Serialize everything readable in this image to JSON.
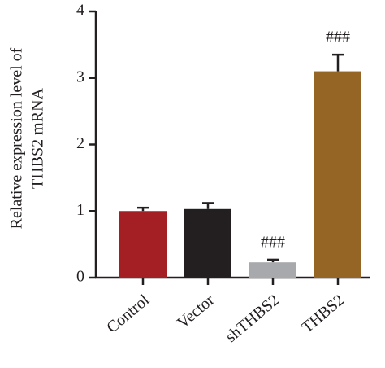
{
  "chart_data": {
    "type": "bar",
    "y_label": [
      "Relative expression level of",
      "THBS2 mRNA"
    ],
    "categories": [
      "Control",
      "Vector",
      "shTHBS2",
      "THBS2"
    ],
    "values": [
      1.0,
      1.03,
      0.23,
      3.1
    ],
    "errors": [
      0.05,
      0.09,
      0.04,
      0.25
    ],
    "colors": [
      "#a31f24",
      "#231f20",
      "#a7a9ac",
      "#956526"
    ],
    "annotations": [
      {
        "category": "shTHBS2",
        "text": "###"
      },
      {
        "category": "THBS2",
        "text": "###"
      }
    ],
    "ylim": [
      0,
      4
    ],
    "yticks": [
      0,
      1,
      2,
      3,
      4
    ]
  }
}
